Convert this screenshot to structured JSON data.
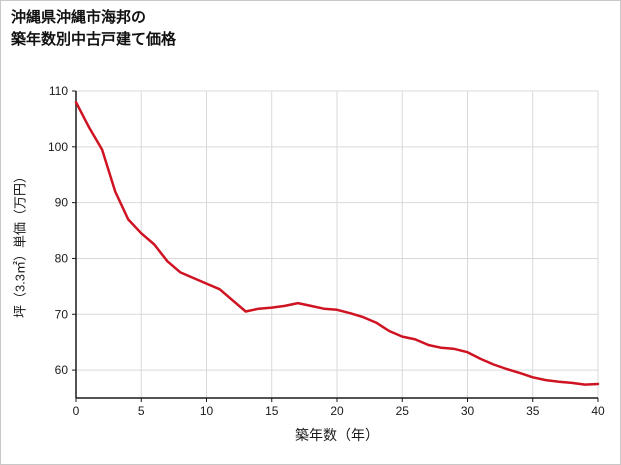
{
  "title": {
    "line1": "沖縄県沖縄市海邦の",
    "line2": "築年数別中古戸建て価格"
  },
  "chart_data": {
    "type": "line",
    "title": "沖縄県沖縄市海邦の築年数別中古戸建て価格",
    "xlabel": "築年数（年）",
    "ylabel": "坪（3.3㎡）単価（万円）",
    "x": [
      0,
      1,
      2,
      3,
      4,
      5,
      6,
      7,
      8,
      9,
      10,
      11,
      12,
      13,
      14,
      15,
      16,
      17,
      18,
      19,
      20,
      21,
      22,
      23,
      24,
      25,
      26,
      27,
      28,
      29,
      30,
      31,
      32,
      33,
      34,
      35,
      36,
      37,
      38,
      39,
      40
    ],
    "values": [
      108,
      103.5,
      99.5,
      92,
      87,
      84.5,
      82.5,
      79.5,
      77.5,
      76.5,
      75.5,
      74.5,
      72.5,
      70.5,
      71,
      71.2,
      71.5,
      72,
      71.5,
      71,
      70.8,
      70.2,
      69.5,
      68.5,
      67,
      66,
      65.5,
      64.5,
      64,
      63.8,
      63.2,
      62,
      61,
      60.2,
      59.5,
      58.7,
      58.2,
      57.9,
      57.7,
      57.4,
      57.5
    ],
    "xlim": [
      0,
      40
    ],
    "ylim": [
      55,
      110
    ],
    "xticks": [
      0,
      5,
      10,
      15,
      20,
      25,
      30,
      35,
      40
    ],
    "yticks": [
      60,
      70,
      80,
      90,
      100,
      110
    ],
    "grid": true,
    "legend": "none",
    "line_color": "#cf1322",
    "axis_color": "#1a1a1a",
    "grid_color": "#d9d9d9",
    "tick_label_color": "#1a1a1a"
  }
}
